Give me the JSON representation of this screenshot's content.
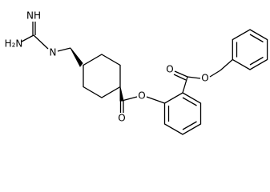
{
  "labels": {
    "imine": "NH",
    "amine": "H₂N",
    "linker_n": "N",
    "ester1_carbonyl_o": "O",
    "ester1_o": "O",
    "ester2_carbonyl_o": "O",
    "ester2_o": "O"
  }
}
